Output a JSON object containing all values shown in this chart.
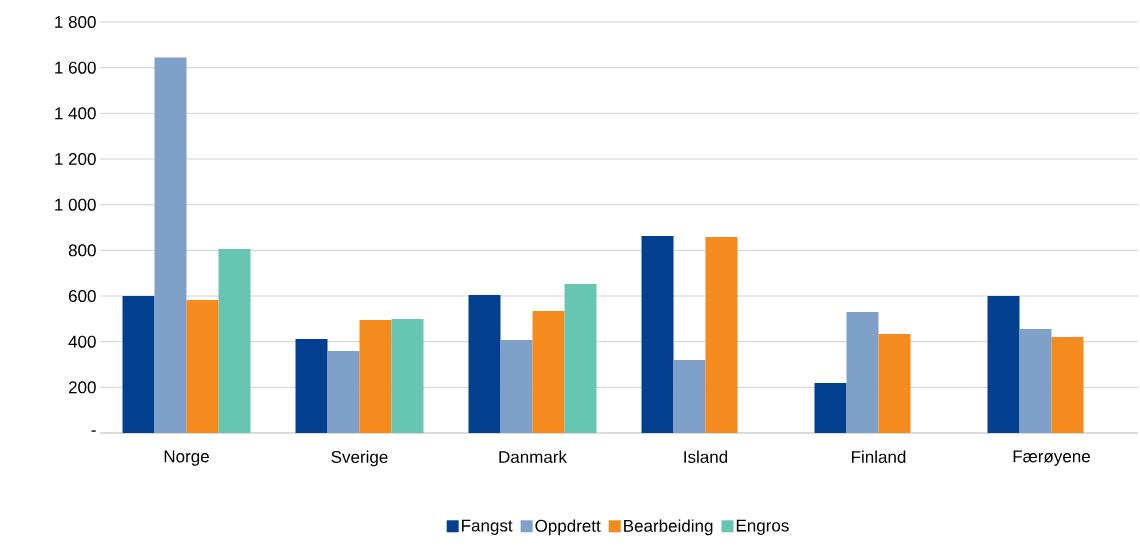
{
  "chart_data": {
    "type": "bar",
    "categories": [
      "Norge",
      "Sverige",
      "Danmark",
      "Island",
      "Finland",
      "Færøyene"
    ],
    "series": [
      {
        "name": "Fangst",
        "color": "#023f8e",
        "values": [
          600,
          412,
          604,
          863,
          219,
          600
        ]
      },
      {
        "name": "Oppdrett",
        "color": "#7fa1c9",
        "values": [
          1645,
          359,
          407,
          320,
          530,
          455
        ]
      },
      {
        "name": "Bearbeiding",
        "color": "#f58a1f",
        "values": [
          583,
          495,
          534,
          858,
          434,
          420
        ]
      },
      {
        "name": "Engros",
        "color": "#66c6b1",
        "values": [
          806,
          499,
          653,
          null,
          null,
          null
        ]
      }
    ],
    "ylim": [
      0,
      1800
    ],
    "yticks": [
      {
        "value": 0,
        "label": "-"
      },
      200,
      400,
      600,
      800,
      {
        "value": 1000,
        "label": "1 000"
      },
      {
        "value": 1200,
        "label": "1 200"
      },
      {
        "value": 1400,
        "label": "1 400"
      },
      {
        "value": 1600,
        "label": "1 600"
      },
      {
        "value": 1800,
        "label": "1 800"
      }
    ],
    "grid": "y",
    "legend": "bottom"
  }
}
